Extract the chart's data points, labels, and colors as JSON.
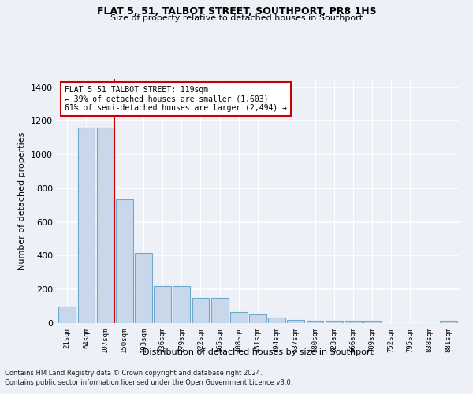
{
  "title": "FLAT 5, 51, TALBOT STREET, SOUTHPORT, PR8 1HS",
  "subtitle": "Size of property relative to detached houses in Southport",
  "xlabel": "Distribution of detached houses by size in Southport",
  "ylabel": "Number of detached properties",
  "categories": [
    "21sqm",
    "64sqm",
    "107sqm",
    "150sqm",
    "193sqm",
    "236sqm",
    "279sqm",
    "322sqm",
    "365sqm",
    "408sqm",
    "451sqm",
    "494sqm",
    "537sqm",
    "580sqm",
    "623sqm",
    "666sqm",
    "709sqm",
    "752sqm",
    "795sqm",
    "838sqm",
    "881sqm"
  ],
  "values": [
    100,
    1160,
    1160,
    735,
    415,
    220,
    220,
    148,
    148,
    65,
    50,
    32,
    20,
    15,
    13,
    12,
    12,
    0,
    0,
    0,
    12
  ],
  "bar_color": "#c8d8ea",
  "bar_edge_color": "#6fa8cc",
  "ylim": [
    0,
    1450
  ],
  "yticks": [
    0,
    200,
    400,
    600,
    800,
    1000,
    1200,
    1400
  ],
  "property_label": "FLAT 5 51 TALBOT STREET: 119sqm",
  "annotation_line1": "← 39% of detached houses are smaller (1,603)",
  "annotation_line2": "61% of semi-detached houses are larger (2,494) →",
  "vline_x_index": 2.45,
  "vline_color": "#cc0000",
  "annotation_box_facecolor": "#ffffff",
  "annotation_border_color": "#cc0000",
  "bg_color": "#edf1f7",
  "plot_bg_color": "#edf1f7",
  "grid_color": "#ffffff",
  "footer_line1": "Contains HM Land Registry data © Crown copyright and database right 2024.",
  "footer_line2": "Contains public sector information licensed under the Open Government Licence v3.0."
}
